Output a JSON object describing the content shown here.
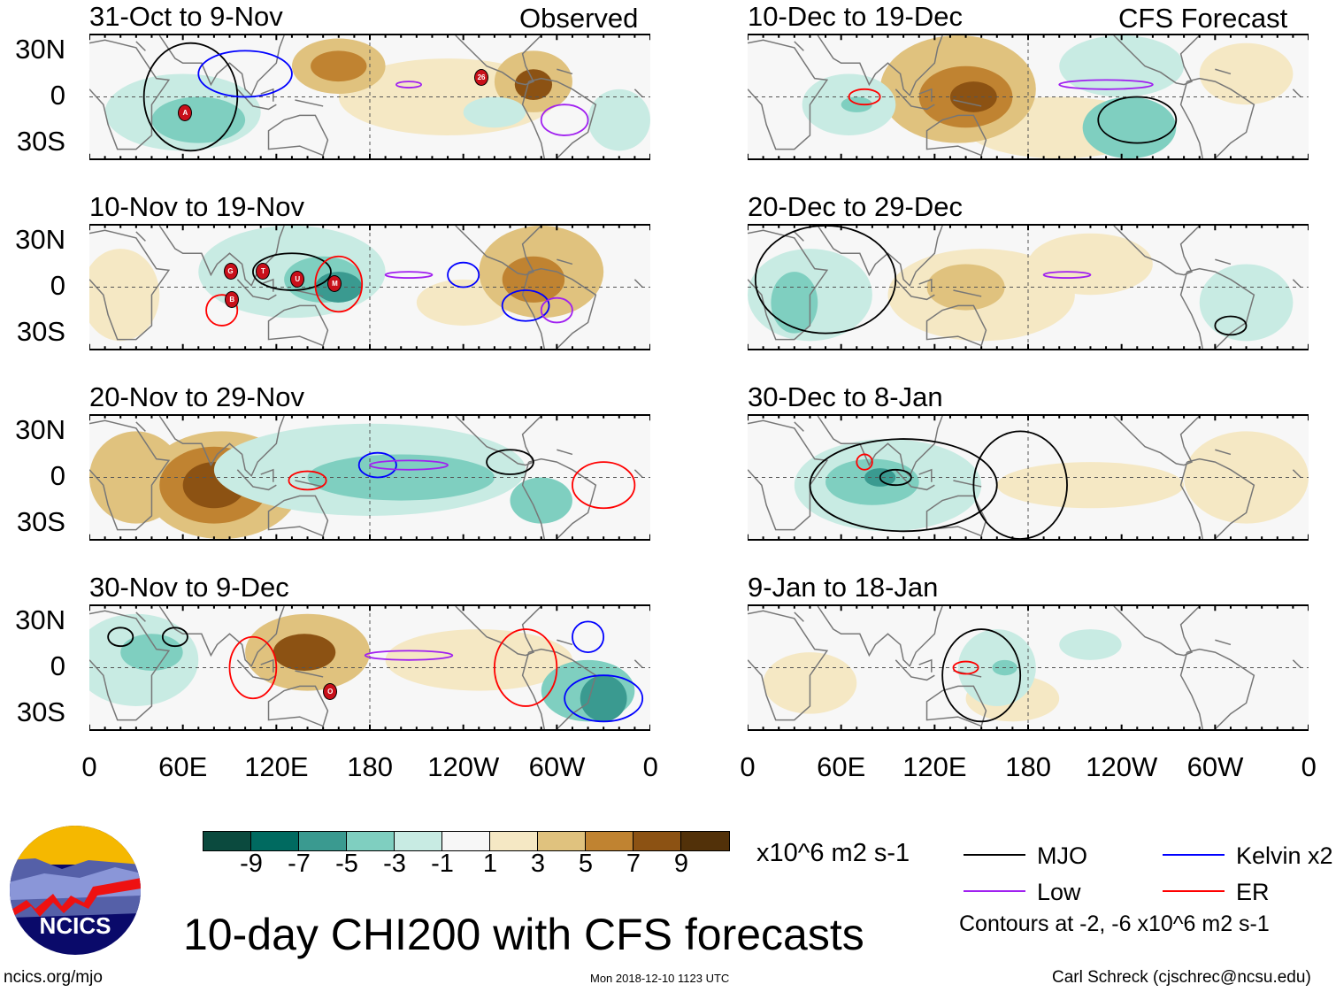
{
  "figure_title": "10-day CHI200 with CFS forecasts",
  "left_header": "Observed",
  "right_header": "CFS Forecast",
  "panels": [
    {
      "title": "31-Oct to 9-Nov",
      "storms": [
        "A",
        "26"
      ]
    },
    {
      "title": "10-Nov to 19-Nov",
      "storms": [
        "G",
        "T",
        "U",
        "M",
        "B"
      ]
    },
    {
      "title": "20-Nov to 29-Nov",
      "storms": []
    },
    {
      "title": "30-Nov to 9-Dec",
      "storms": [
        "O"
      ]
    },
    {
      "title": "10-Dec to 19-Dec",
      "storms": []
    },
    {
      "title": "20-Dec to 29-Dec",
      "storms": []
    },
    {
      "title": "30-Dec to 8-Jan",
      "storms": []
    },
    {
      "title": "9-Jan to 18-Jan",
      "storms": []
    }
  ],
  "lat_labels": [
    "30N",
    "0",
    "30S"
  ],
  "lon_labels": [
    "0",
    "60E",
    "120E",
    "180",
    "120W",
    "60W",
    "0"
  ],
  "colorbar": {
    "colors": [
      "#0b4a3e",
      "#006a60",
      "#3a9a90",
      "#7fcfc0",
      "#c8ebe3",
      "#f7f7f7",
      "#f5e8c4",
      "#e0c27e",
      "#c08331",
      "#8c5213",
      "#523109"
    ],
    "labels": [
      "-9",
      "-7",
      "-5",
      "-3",
      "-1",
      "1",
      "3",
      "5",
      "7",
      "9"
    ],
    "units": "x10^6 m2 s-1"
  },
  "legend": {
    "items": [
      {
        "label": "MJO",
        "color": "#000000"
      },
      {
        "label": "Kelvin x2",
        "color": "#0000ff"
      },
      {
        "label": "Low",
        "color": "#a020f0"
      },
      {
        "label": "ER",
        "color": "#ff0000"
      }
    ],
    "note": "Contours at -2, -6 x10^6 m2 s-1"
  },
  "logo_text": "NCICS",
  "url": "ncics.org/mjo",
  "timestamp": "Mon 2018-12-10 1123 UTC",
  "author": "Carl Schreck (cjschrec@ncsu.edu)"
}
